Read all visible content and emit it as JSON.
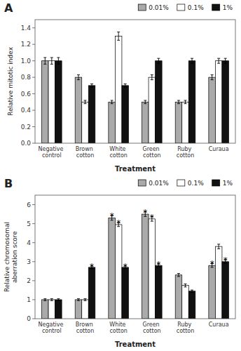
{
  "chart_data": [
    {
      "type": "bar",
      "title": "A",
      "xlabel": "Treatment",
      "ylabel": "Relative mitotic index",
      "categories": [
        "Negative control",
        "Brown cotton",
        "White cotton",
        "Green cotton",
        "Ruby cotton",
        "Curaua"
      ],
      "series": [
        {
          "name": "0.01%",
          "color": "#aaaaaa",
          "values": [
            1.0,
            0.8,
            0.5,
            0.5,
            0.5,
            0.8
          ],
          "errors": [
            0.04,
            0.03,
            0.02,
            0.02,
            0.02,
            0.03
          ],
          "significant": [
            false,
            false,
            false,
            false,
            false,
            false
          ]
        },
        {
          "name": "0.1%",
          "color": "#ffffff",
          "values": [
            1.0,
            0.5,
            1.3,
            0.8,
            0.5,
            1.0
          ],
          "errors": [
            0.04,
            0.02,
            0.05,
            0.03,
            0.02,
            0.03
          ],
          "significant": [
            false,
            false,
            false,
            false,
            false,
            false
          ]
        },
        {
          "name": "1%",
          "color": "#111111",
          "values": [
            1.0,
            0.7,
            0.7,
            1.0,
            1.0,
            1.0
          ],
          "errors": [
            0.04,
            0.02,
            0.02,
            0.03,
            0.03,
            0.03
          ],
          "significant": [
            false,
            false,
            false,
            false,
            false,
            false
          ]
        }
      ],
      "annotation": "*",
      "ylim": [
        0.0,
        1.5
      ],
      "yticks": [
        {
          "value": 0.0,
          "label": "0.0"
        },
        0.2,
        0.4,
        0.6,
        0.8,
        {
          "value": 1.0,
          "label": "1.0"
        },
        1.2,
        1.4
      ],
      "grid": false,
      "legend": "top"
    },
    {
      "type": "bar",
      "title": "B",
      "xlabel": "Treatment",
      "ylabel": "Relative chromosomal\naberration score",
      "categories": [
        "Negative control",
        "Brown cotton",
        "White cotton",
        "Green cotton",
        "Ruby cotton",
        "Curaua"
      ],
      "series": [
        {
          "name": "0.01%",
          "color": "#aaaaaa",
          "values": [
            1.0,
            1.0,
            5.3,
            5.5,
            2.3,
            2.8
          ],
          "errors": [
            0.05,
            0.05,
            0.12,
            0.12,
            0.08,
            0.1
          ],
          "significant": [
            false,
            false,
            true,
            true,
            false,
            true
          ]
        },
        {
          "name": "0.1%",
          "color": "#ffffff",
          "values": [
            1.0,
            1.0,
            4.95,
            5.25,
            1.75,
            3.8
          ],
          "errors": [
            0.05,
            0.05,
            0.1,
            0.12,
            0.08,
            0.12
          ],
          "significant": [
            false,
            false,
            true,
            true,
            false,
            false
          ]
        },
        {
          "name": "1%",
          "color": "#111111",
          "values": [
            1.0,
            2.7,
            2.7,
            2.8,
            1.45,
            3.0
          ],
          "errors": [
            0.05,
            0.07,
            0.07,
            0.08,
            0.06,
            0.1
          ],
          "significant": [
            false,
            true,
            true,
            true,
            false,
            true
          ]
        }
      ],
      "annotation": "*",
      "ylim": [
        0.0,
        6.5
      ],
      "yticks": [
        0,
        1,
        2,
        3,
        4,
        5,
        6
      ],
      "grid": false,
      "legend": "top"
    }
  ]
}
